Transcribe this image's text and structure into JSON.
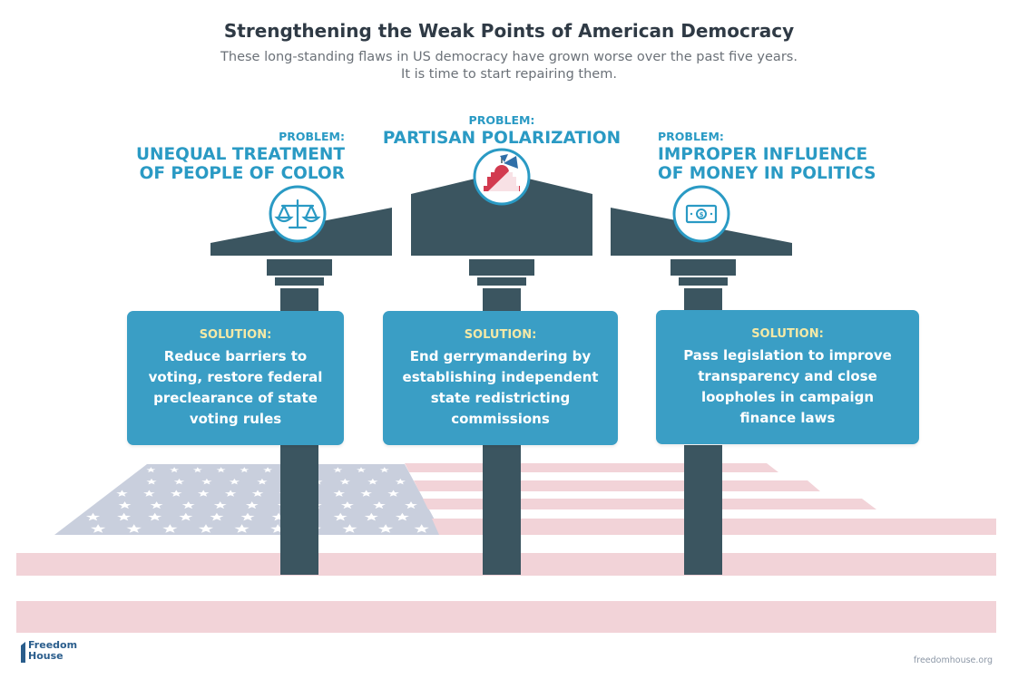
{
  "title": "Strengthening the Weak Points of American Democracy",
  "subtitle": {
    "line1": "These long-standing flaws in US democracy have grown worse over the past five years.",
    "line2": "It is time to start repairing them."
  },
  "problems": [
    {
      "label": "PROBLEM:",
      "title_line1": "UNEQUAL TREATMENT",
      "title_line2": "OF PEOPLE OF COLOR",
      "icon": "scales-icon",
      "solution_label": "SOLUTION:",
      "solution_lines": [
        "Reduce barriers to",
        "voting, restore federal",
        "preclearance of state",
        "voting rules"
      ]
    },
    {
      "label": "PROBLEM:",
      "title_line1": "PARTISAN POLARIZATION",
      "icon": "capitol-icon",
      "solution_label": "SOLUTION:",
      "solution_lines": [
        "End gerrymandering by",
        "establishing independent",
        "state redistricting",
        "commissions"
      ]
    },
    {
      "label": "PROBLEM:",
      "title_line1": "IMPROPER INFLUENCE",
      "title_line2": "OF MONEY IN POLITICS",
      "icon": "dollar-bill-icon",
      "solution_label": "SOLUTION:",
      "solution_lines": [
        "Pass legislation to improve",
        "transparency and close",
        "loopholes in campaign",
        "finance laws"
      ]
    }
  ],
  "footer": {
    "logo_line1": "Freedom",
    "logo_line2": "House",
    "site": "freedomhouse.org"
  },
  "colors": {
    "pillar": "#3b5560",
    "accent": "#2a9ac4",
    "card": "#3a9ec5",
    "solution_label": "#f4e9a6",
    "flag_stripe": "#f2d3d8",
    "flag_canton": "#c9cfdd"
  }
}
